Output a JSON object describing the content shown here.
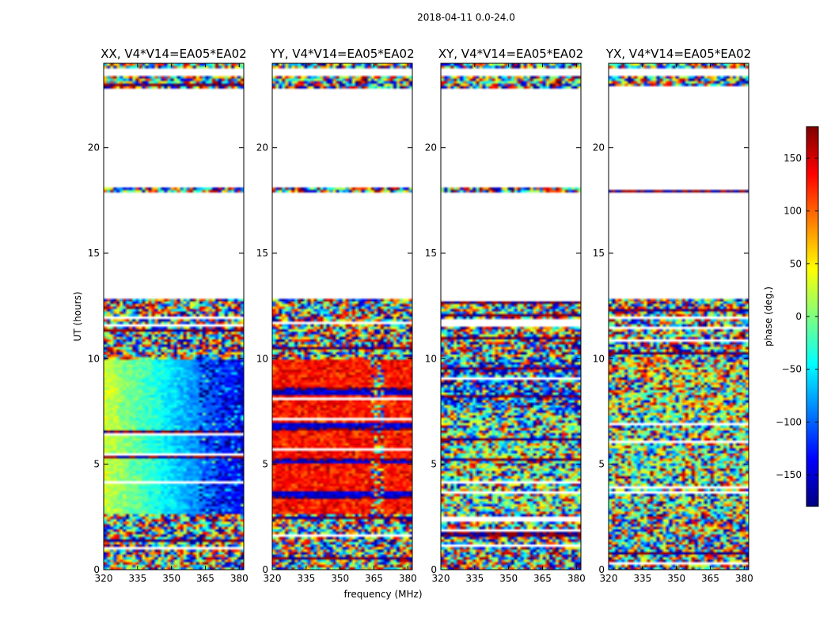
{
  "chart_data": {
    "type": "heatmap",
    "title": "2018-04-11 0.0-24.0",
    "xlabel": "frequency (MHz)",
    "ylabel": "UT (hours)",
    "xlim": [
      320,
      382
    ],
    "ylim": [
      0,
      24
    ],
    "xticks": [
      320,
      335,
      350,
      365,
      380
    ],
    "yticks": [
      0,
      5,
      10,
      15,
      20
    ],
    "grid": false,
    "colorbar": {
      "label": "phase (deg.)",
      "range": [
        -180,
        180
      ],
      "ticks": [
        150,
        100,
        50,
        0,
        -50,
        -100,
        -150
      ],
      "tick_labels": [
        "150",
        "100",
        "50",
        "0",
        "−50",
        "−100",
        "−150"
      ],
      "colormap": "jet"
    },
    "empty_ut_ranges": [
      [
        23.35,
        23.75
      ],
      [
        21.9,
        22.8
      ],
      [
        12.8,
        17.9
      ],
      [
        18.1,
        21.8
      ]
    ],
    "noise_ut_ranges": [
      [
        0,
        2.7
      ],
      [
        9.9,
        12.8
      ],
      [
        17.9,
        18.1
      ],
      [
        22.0,
        22.8
      ],
      [
        23.75,
        24
      ]
    ],
    "coherent_ut_range": [
      2.7,
      9.9
    ],
    "panels": [
      {
        "title": "XX, V4*V14=EA05*EA02",
        "coherent_phase_deg": -40,
        "coherent_pattern": "gradient from about +30 deg at 320-335 MHz through -50 deg to about -140 deg above 360 MHz"
      },
      {
        "title": "YY, V4*V14=EA05*EA02",
        "coherent_phase_deg": 135,
        "coherent_pattern": "mostly +120 to +160 deg with bands near -150 deg between 4 and 8 hours; disturbed near 364-370 MHz"
      },
      {
        "title": "XY, V4*V14=EA05*EA02",
        "coherent_phase_deg": null,
        "coherent_pattern": "noise-like phase, slightly negative (blue) around 8-10 hours"
      },
      {
        "title": "YX, V4*V14=EA05*EA02",
        "coherent_phase_deg": null,
        "coherent_pattern": "noise-like phase, slightly positive (yellow) around 8-10 hours"
      }
    ]
  }
}
